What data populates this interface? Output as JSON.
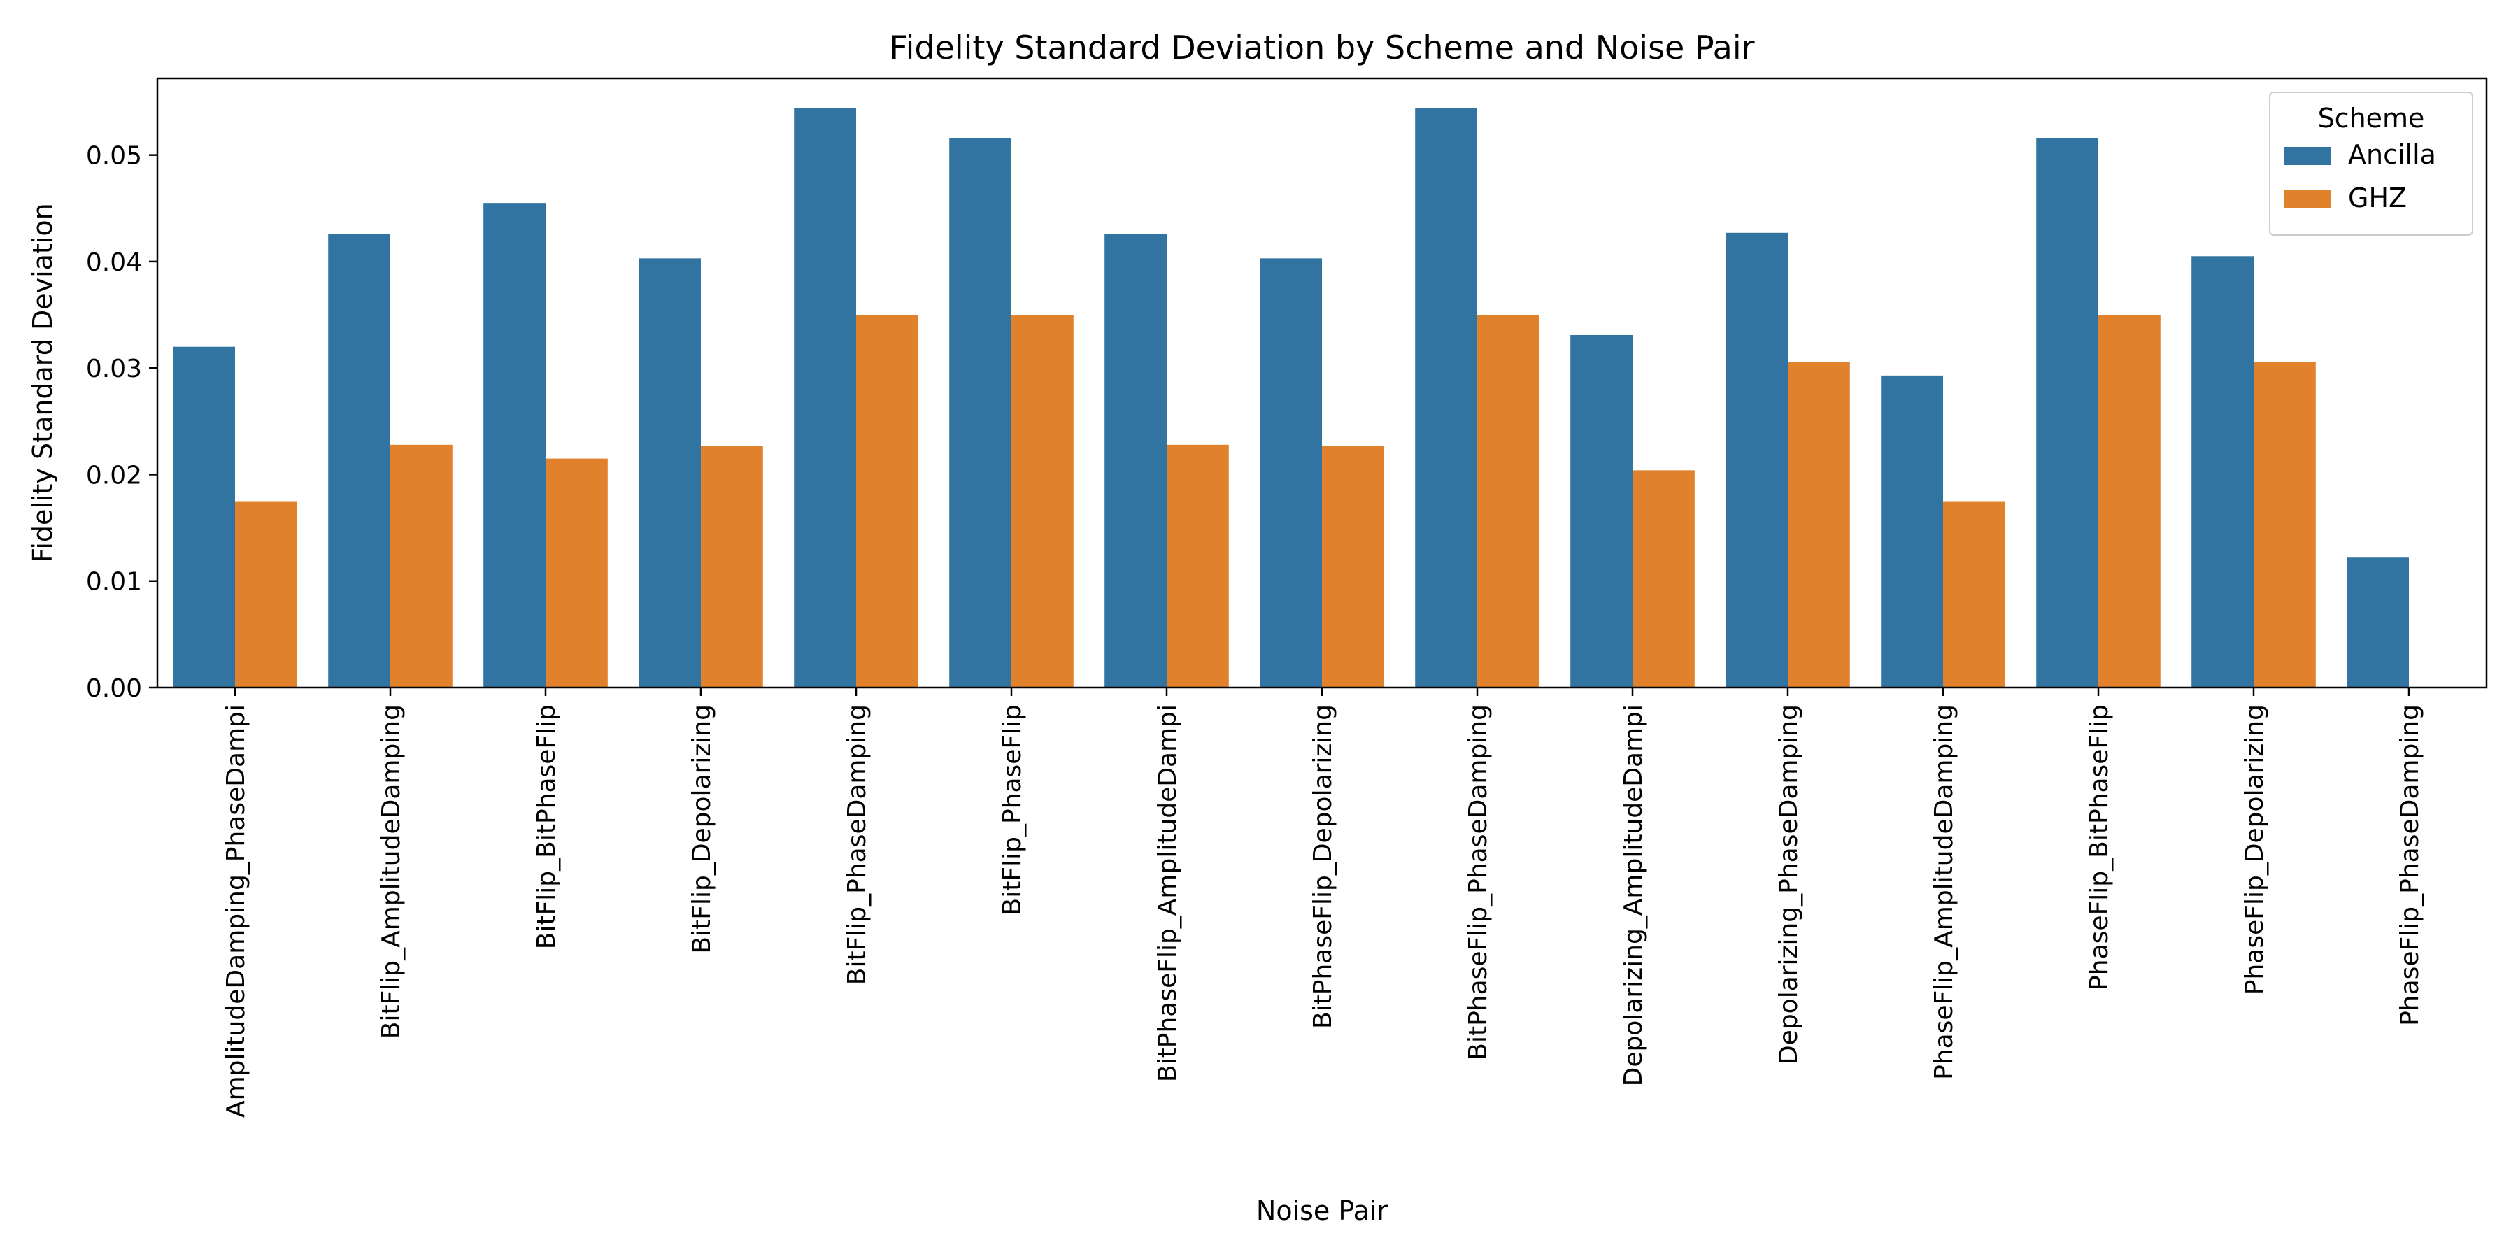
{
  "chart_data": {
    "type": "bar",
    "title": "Fidelity Standard Deviation by Scheme and Noise Pair",
    "xlabel": "Noise Pair",
    "ylabel": "Fidelity Standard Deviation",
    "ylim": [
      0,
      0.0572
    ],
    "yticks": [
      0.0,
      0.01,
      0.02,
      0.03,
      0.04,
      0.05
    ],
    "ytick_labels": [
      "0.00",
      "0.01",
      "0.02",
      "0.03",
      "0.04",
      "0.05"
    ],
    "grid": false,
    "categories": [
      "AmplitudeDamping_PhaseDampi",
      "BitFlip_AmplitudeDamping",
      "BitFlip_BitPhaseFlip",
      "BitFlip_Depolarizing",
      "BitFlip_PhaseDamping",
      "BitFlip_PhaseFlip",
      "BitPhaseFlip_AmplitudeDampi",
      "BitPhaseFlip_Depolarizing",
      "BitPhaseFlip_PhaseDamping",
      "Depolarizing_AmplitudeDampi",
      "Depolarizing_PhaseDamping",
      "PhaseFlip_AmplitudeDamping",
      "PhaseFlip_BitPhaseFlip",
      "PhaseFlip_Depolarizing",
      "PhaseFlip_PhaseDamping"
    ],
    "series": [
      {
        "name": "Ancilla",
        "color": "#3274a1",
        "values": [
          0.032,
          0.0426,
          0.0455,
          0.0403,
          0.0544,
          0.0516,
          0.0426,
          0.0403,
          0.0544,
          0.0331,
          0.0427,
          0.0293,
          0.0516,
          0.0405,
          0.0122
        ]
      },
      {
        "name": "GHZ",
        "color": "#e1812c",
        "values": [
          0.0175,
          0.0228,
          0.0215,
          0.0227,
          0.035,
          0.035,
          0.0228,
          0.0227,
          0.035,
          0.0204,
          0.0306,
          0.0175,
          0.035,
          0.0306,
          0.0
        ]
      }
    ],
    "legend": {
      "title": "Scheme",
      "position": "top-right",
      "entries": [
        "Ancilla",
        "GHZ"
      ]
    }
  }
}
